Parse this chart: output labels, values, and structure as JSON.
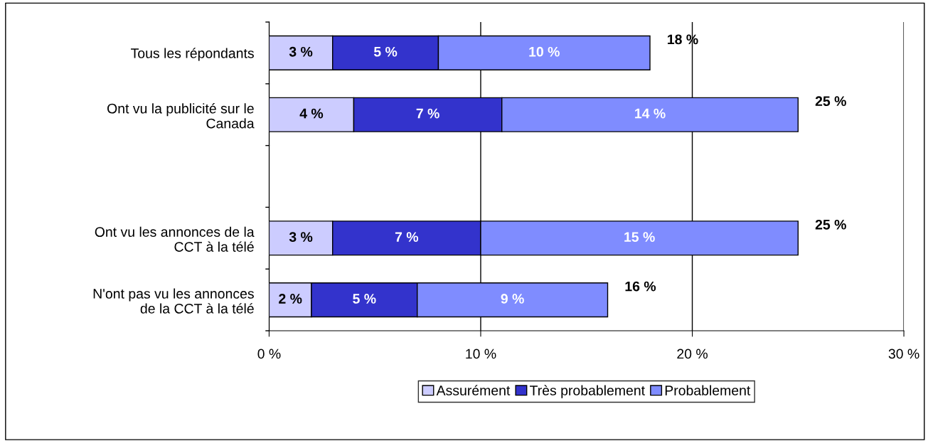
{
  "chart_data": {
    "type": "bar",
    "orientation": "horizontal",
    "stacked": true,
    "categories": [
      "Tous les répondants",
      "Ont vu la publicité sur le\nCanada",
      null,
      "Ont vu les annonces de la\nCCT à la télé",
      "N'ont pas vu les annonces\nde la CCT à la télé"
    ],
    "series": [
      {
        "name": "Assurément",
        "color": "#ccccff",
        "values": [
          3,
          4,
          null,
          3,
          2
        ],
        "value_labels": [
          "3 %",
          "4 %",
          null,
          "3 %",
          "2 %"
        ]
      },
      {
        "name": "Très probablement",
        "color": "#3333cc",
        "values": [
          5,
          7,
          null,
          7,
          5
        ],
        "value_labels": [
          "5 %",
          "7 %",
          null,
          "7 %",
          "5 %"
        ]
      },
      {
        "name": "Probablement",
        "color": "#7f8cff",
        "values": [
          10,
          14,
          null,
          15,
          9
        ],
        "value_labels": [
          "10 %",
          "14 %",
          null,
          "15 %",
          "9 %"
        ]
      }
    ],
    "totals": [
      "18 %",
      "25 %",
      null,
      "25 %",
      "16 %"
    ],
    "xlim": [
      0,
      30
    ],
    "xticks": [
      {
        "value": 0,
        "label": "0 %"
      },
      {
        "value": 10,
        "label": "10 %"
      },
      {
        "value": 20,
        "label": "20 %"
      },
      {
        "value": 30,
        "label": "30 %"
      }
    ],
    "grid": "x",
    "legend": "bottom"
  }
}
